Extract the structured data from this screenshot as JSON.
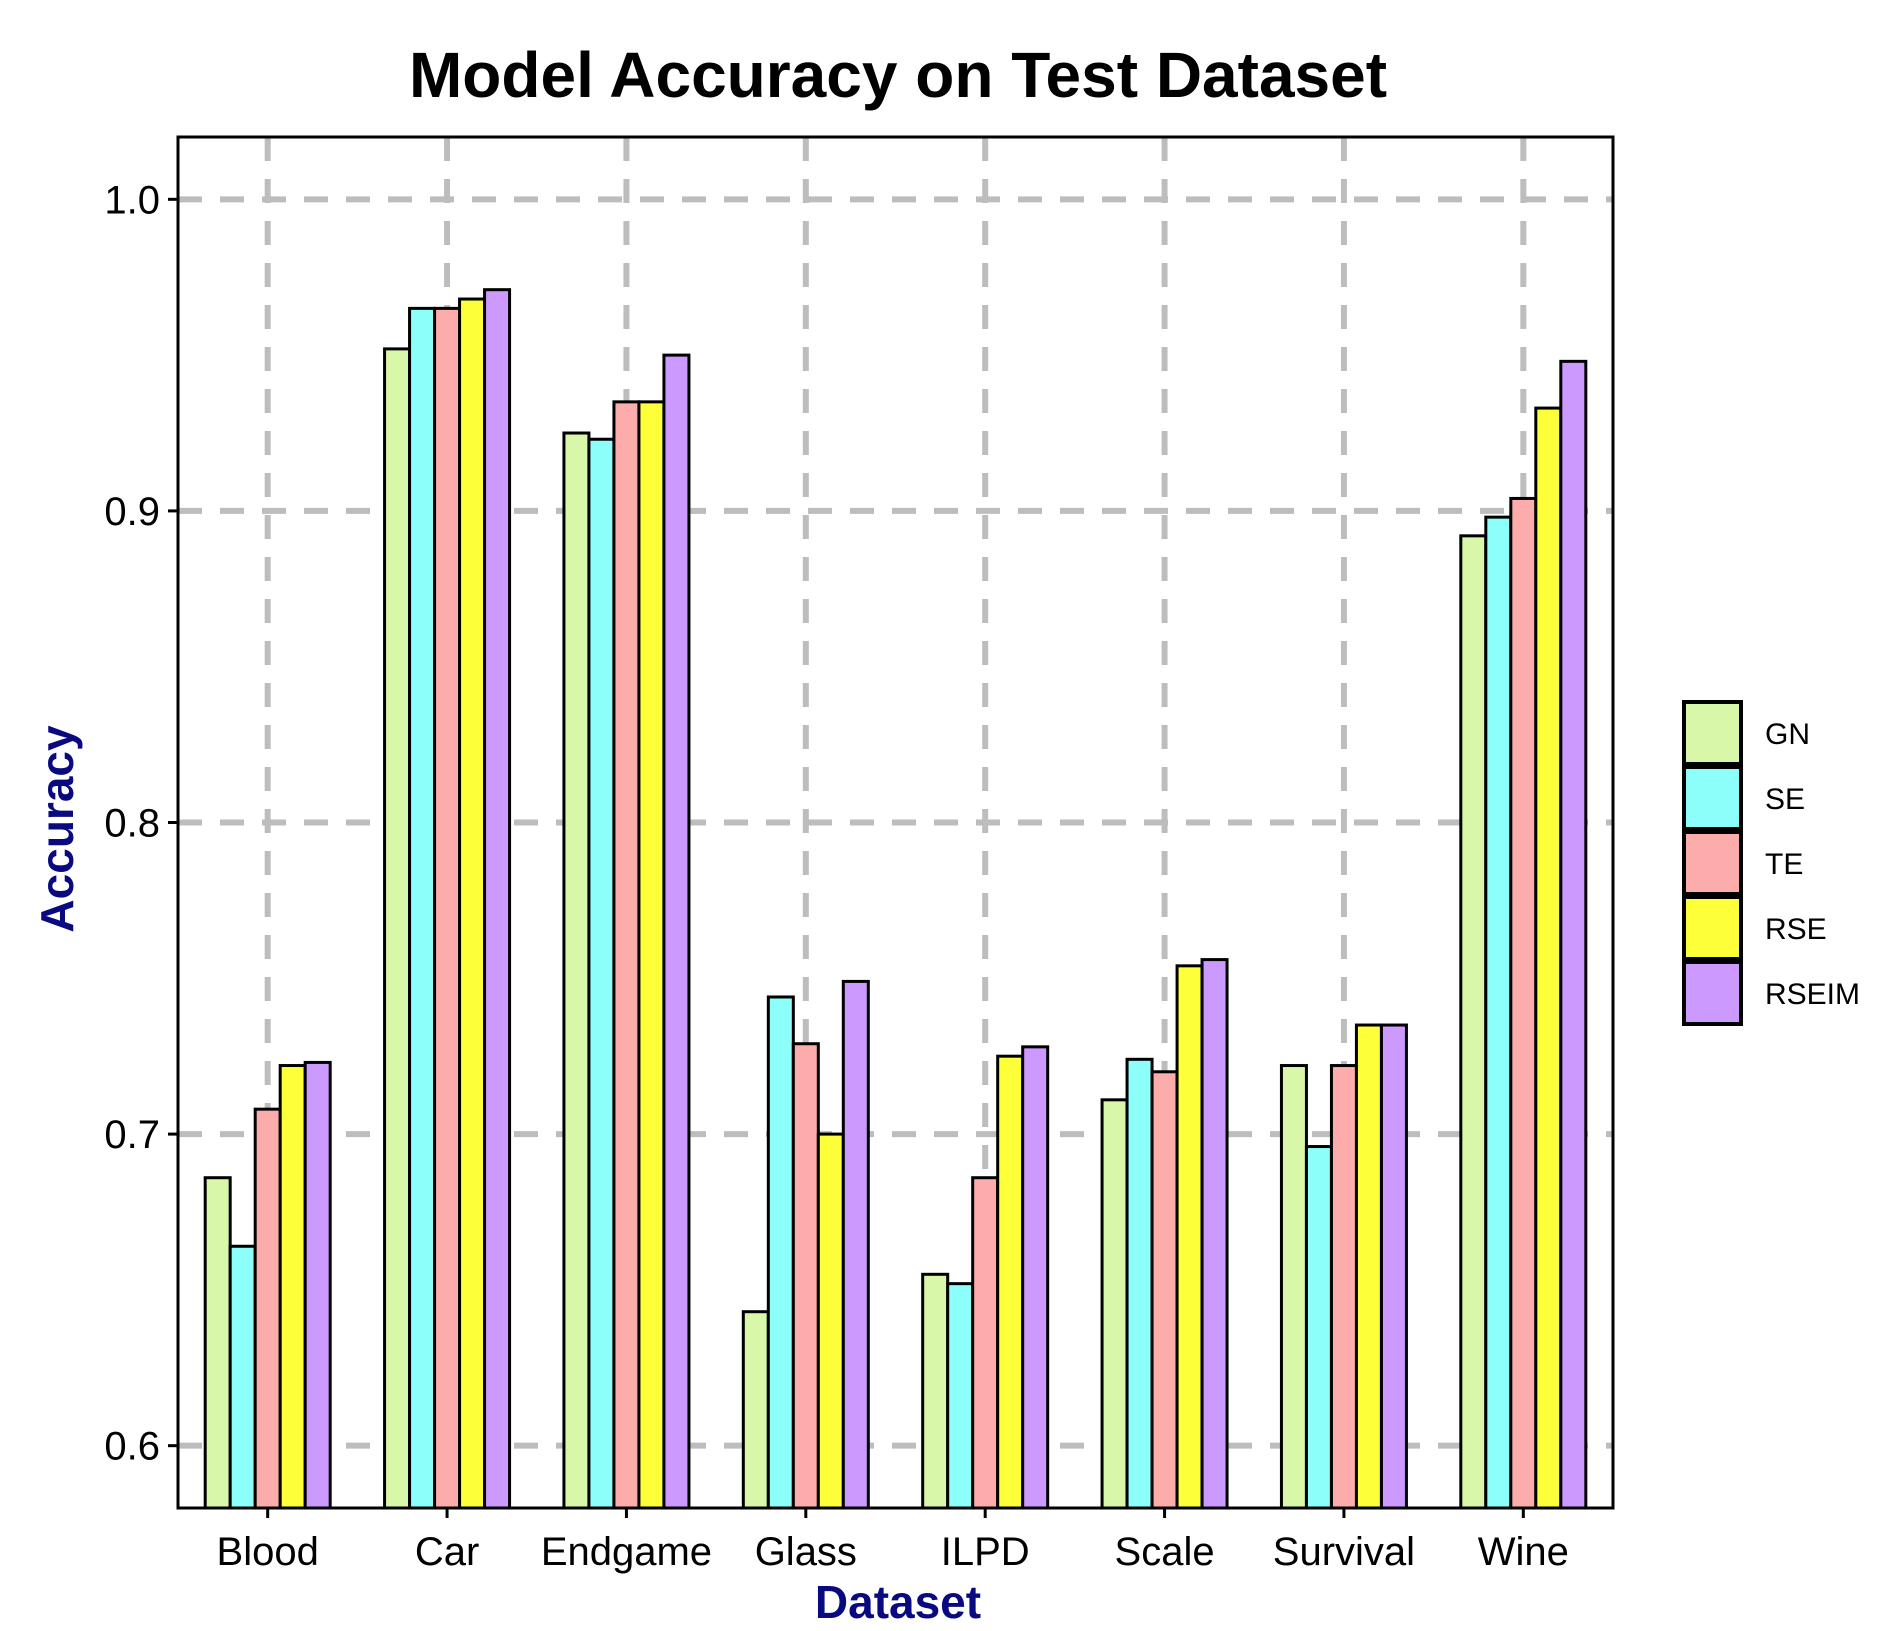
{
  "chart_data": {
    "type": "bar",
    "title": "Model Accuracy on Test Dataset",
    "xlabel": "Dataset",
    "ylabel": "Accuracy",
    "categories": [
      "Blood",
      "Car",
      "Endgame",
      "Glass",
      "ILPD",
      "Scale",
      "Survival",
      "Wine"
    ],
    "yticks": [
      "0.6",
      "0.7",
      "0.8",
      "0.9",
      "1.0"
    ],
    "ylim": [
      0.58,
      1.02
    ],
    "grid": true,
    "legend_position": "right",
    "series": [
      {
        "name": "GN",
        "color": "#d9f7a8",
        "values": [
          0.686,
          0.952,
          0.925,
          0.643,
          0.655,
          0.711,
          0.722,
          0.892
        ]
      },
      {
        "name": "SE",
        "color": "#8cfffb",
        "values": [
          0.664,
          0.965,
          0.923,
          0.744,
          0.652,
          0.724,
          0.696,
          0.898
        ]
      },
      {
        "name": "TE",
        "color": "#fcacab",
        "values": [
          0.708,
          0.965,
          0.935,
          0.729,
          0.686,
          0.72,
          0.722,
          0.904
        ]
      },
      {
        "name": "RSE",
        "color": "#fdff38",
        "values": [
          0.722,
          0.968,
          0.935,
          0.7,
          0.725,
          0.754,
          0.735,
          0.933
        ]
      },
      {
        "name": "RSEIM",
        "color": "#cc99ff",
        "values": [
          0.723,
          0.971,
          0.95,
          0.749,
          0.728,
          0.756,
          0.735,
          0.948
        ]
      }
    ]
  }
}
